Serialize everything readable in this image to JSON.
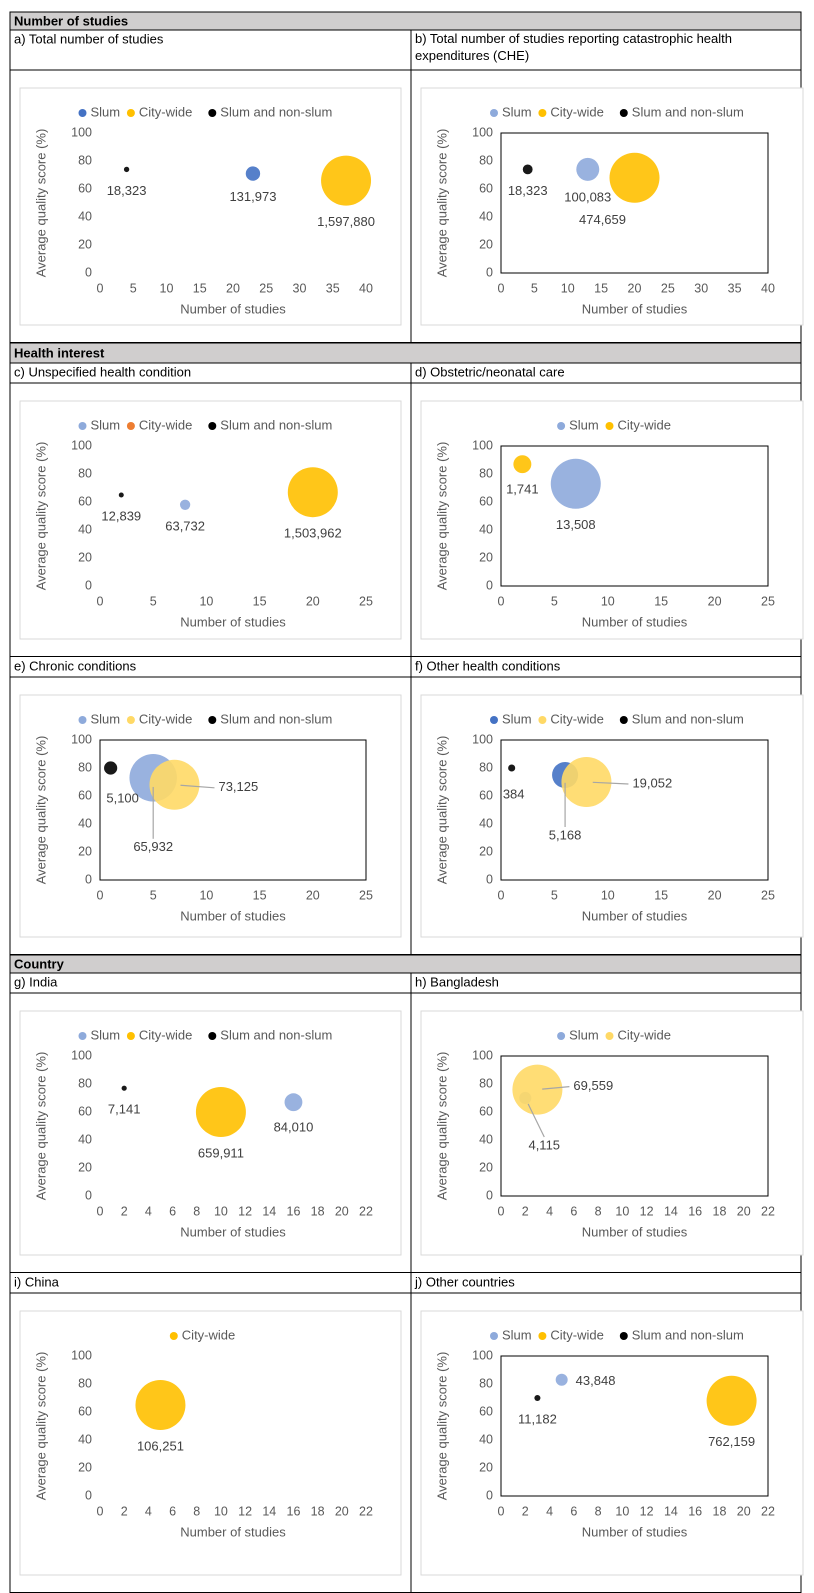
{
  "sections": [
    "Number of studies",
    "Health interest",
    "Country"
  ],
  "chart_data": [
    {
      "type": "bubble",
      "title": "a) Total number of studies",
      "xlabel": "Number of studies",
      "ylabel": "Average quality score (%)",
      "xlim": [
        0,
        40
      ],
      "xticks": [
        0,
        5,
        10,
        15,
        20,
        25,
        30,
        35,
        40
      ],
      "ylim": [
        0,
        100
      ],
      "yticks": [
        0,
        20,
        40,
        60,
        80,
        100
      ],
      "plot_border": false,
      "series": [
        {
          "name": "Slum",
          "color": "#4472c4",
          "x": [
            23
          ],
          "values": [
            71
          ],
          "sizes": [
            131973
          ],
          "value_labels": [
            "131,973"
          ]
        },
        {
          "name": "City-wide",
          "color": "#ffc000",
          "x": [
            37
          ],
          "values": [
            66
          ],
          "sizes": [
            1597880
          ],
          "value_labels": [
            "1,597,880"
          ]
        },
        {
          "name": "Slum and non-slum",
          "color": "#000000",
          "x": [
            4
          ],
          "values": [
            74
          ],
          "sizes": [
            18323
          ],
          "value_labels": [
            "18,323"
          ]
        }
      ]
    },
    {
      "type": "bubble",
      "title": "b) Total number of studies reporting catastrophic health expenditures (CHE)",
      "xlabel": "Number of studies",
      "ylabel": "Average quality score (%)",
      "xlim": [
        0,
        40
      ],
      "xticks": [
        0,
        5,
        10,
        15,
        20,
        25,
        30,
        35,
        40
      ],
      "ylim": [
        0,
        100
      ],
      "yticks": [
        0,
        20,
        40,
        60,
        80,
        100
      ],
      "plot_border": true,
      "series": [
        {
          "name": "Slum",
          "color": "#8eaadb",
          "x": [
            13
          ],
          "values": [
            74
          ],
          "sizes": [
            100083
          ],
          "value_labels": [
            "100,083"
          ]
        },
        {
          "name": "City-wide",
          "color": "#ffc000",
          "x": [
            20
          ],
          "values": [
            68
          ],
          "sizes": [
            474659
          ],
          "value_labels": [
            "474,659"
          ]
        },
        {
          "name": "Slum and non-slum",
          "color": "#000000",
          "x": [
            4
          ],
          "values": [
            74
          ],
          "sizes": [
            18323
          ],
          "value_labels": [
            "18,323"
          ]
        }
      ]
    },
    {
      "type": "bubble",
      "title": "c) Unspecified health condition",
      "xlabel": "Number of studies",
      "ylabel": "Average quality score (%)",
      "xlim": [
        0,
        25
      ],
      "xticks": [
        0,
        5,
        10,
        15,
        20,
        25
      ],
      "ylim": [
        0,
        100
      ],
      "yticks": [
        0,
        20,
        40,
        60,
        80,
        100
      ],
      "plot_border": false,
      "series": [
        {
          "name": "Slum",
          "color": "#8eaadb",
          "x": [
            8
          ],
          "values": [
            58
          ],
          "sizes": [
            63732
          ],
          "value_labels": [
            "63,732"
          ]
        },
        {
          "name": "City-wide",
          "color": "#ed7d31",
          "marker_color": "#ffc000",
          "x": [
            20
          ],
          "values": [
            67
          ],
          "sizes": [
            1503962
          ],
          "value_labels": [
            "1,503,962"
          ]
        },
        {
          "name": "Slum and non-slum",
          "color": "#000000",
          "x": [
            2
          ],
          "values": [
            65
          ],
          "sizes": [
            12839
          ],
          "value_labels": [
            "12,839"
          ]
        }
      ]
    },
    {
      "type": "bubble",
      "title": "d) Obstetric/neonatal care",
      "xlabel": "Number of studies",
      "ylabel": "Average quality score (%)",
      "xlim": [
        0,
        25
      ],
      "xticks": [
        0,
        5,
        10,
        15,
        20,
        25
      ],
      "ylim": [
        0,
        100
      ],
      "yticks": [
        0,
        20,
        40,
        60,
        80,
        100
      ],
      "plot_border": true,
      "series": [
        {
          "name": "Slum",
          "color": "#8eaadb",
          "x": [
            7
          ],
          "values": [
            73
          ],
          "sizes": [
            13508
          ],
          "value_labels": [
            "13,508"
          ]
        },
        {
          "name": "City-wide",
          "color": "#ffc000",
          "x": [
            2
          ],
          "values": [
            87
          ],
          "sizes": [
            1741
          ],
          "value_labels": [
            "1,741"
          ]
        }
      ]
    },
    {
      "type": "bubble",
      "title": "e) Chronic conditions",
      "xlabel": "Number of studies",
      "ylabel": "Average quality score (%)",
      "xlim": [
        0,
        25
      ],
      "xticks": [
        0,
        5,
        10,
        15,
        20,
        25
      ],
      "ylim": [
        0,
        100
      ],
      "yticks": [
        0,
        20,
        40,
        60,
        80,
        100
      ],
      "plot_border": true,
      "series": [
        {
          "name": "Slum",
          "color": "#8eaadb",
          "x": [
            5
          ],
          "values": [
            73
          ],
          "sizes": [
            65932
          ],
          "value_labels": [
            "65,932"
          ]
        },
        {
          "name": "City-wide",
          "color": "#ffd966",
          "x": [
            7
          ],
          "values": [
            68
          ],
          "sizes": [
            73125
          ],
          "value_labels": [
            "73,125"
          ]
        },
        {
          "name": "Slum and non-slum",
          "color": "#000000",
          "x": [
            1
          ],
          "values": [
            80
          ],
          "sizes": [
            5100
          ],
          "value_labels": [
            "5,100"
          ]
        }
      ]
    },
    {
      "type": "bubble",
      "title": "f) Other health conditions",
      "xlabel": "Number of studies",
      "ylabel": "Average quality score (%)",
      "xlim": [
        0,
        25
      ],
      "xticks": [
        0,
        5,
        10,
        15,
        20,
        25
      ],
      "ylim": [
        0,
        100
      ],
      "yticks": [
        0,
        20,
        40,
        60,
        80,
        100
      ],
      "plot_border": true,
      "series": [
        {
          "name": "Slum",
          "color": "#4472c4",
          "x": [
            6
          ],
          "values": [
            75
          ],
          "sizes": [
            5168
          ],
          "value_labels": [
            "5,168"
          ]
        },
        {
          "name": "City-wide",
          "color": "#ffd966",
          "x": [
            8
          ],
          "values": [
            70
          ],
          "sizes": [
            19052
          ],
          "value_labels": [
            "19,052"
          ]
        },
        {
          "name": "Slum and non-slum",
          "color": "#000000",
          "x": [
            1
          ],
          "values": [
            80
          ],
          "sizes": [
            384
          ],
          "value_labels": [
            "384"
          ]
        }
      ]
    },
    {
      "type": "bubble",
      "title": "g) India",
      "xlabel": "Number of studies",
      "ylabel": "Average quality score (%)",
      "xlim": [
        0,
        22
      ],
      "xticks": [
        0,
        2,
        4,
        6,
        8,
        10,
        12,
        14,
        16,
        18,
        20,
        22
      ],
      "ylim": [
        0,
        100
      ],
      "yticks": [
        0,
        20,
        40,
        60,
        80,
        100
      ],
      "plot_border": false,
      "series": [
        {
          "name": "Slum",
          "color": "#8eaadb",
          "x": [
            16
          ],
          "values": [
            67
          ],
          "sizes": [
            84010
          ],
          "value_labels": [
            "84,010"
          ]
        },
        {
          "name": "City-wide",
          "color": "#ffc000",
          "x": [
            10
          ],
          "values": [
            60
          ],
          "sizes": [
            659911
          ],
          "value_labels": [
            "659,911"
          ]
        },
        {
          "name": "Slum and non-slum",
          "color": "#000000",
          "x": [
            2
          ],
          "values": [
            77
          ],
          "sizes": [
            7141
          ],
          "value_labels": [
            "7,141"
          ]
        }
      ]
    },
    {
      "type": "bubble",
      "title": "h) Bangladesh",
      "xlabel": "Number of studies",
      "ylabel": "Average quality score (%)",
      "xlim": [
        0,
        22
      ],
      "xticks": [
        0,
        2,
        4,
        6,
        8,
        10,
        12,
        14,
        16,
        18,
        20,
        22
      ],
      "ylim": [
        0,
        100
      ],
      "yticks": [
        0,
        20,
        40,
        60,
        80,
        100
      ],
      "plot_border": true,
      "series": [
        {
          "name": "Slum",
          "color": "#8eaadb",
          "x": [
            2
          ],
          "values": [
            70
          ],
          "sizes": [
            4115
          ],
          "value_labels": [
            "4,115"
          ]
        },
        {
          "name": "City-wide",
          "color": "#ffd966",
          "x": [
            3
          ],
          "values": [
            76
          ],
          "sizes": [
            69559
          ],
          "value_labels": [
            "69,559"
          ]
        }
      ]
    },
    {
      "type": "bubble",
      "title": "i) China",
      "xlabel": "Number of studies",
      "ylabel": "Average quality score (%)",
      "xlim": [
        0,
        22
      ],
      "xticks": [
        0,
        2,
        4,
        6,
        8,
        10,
        12,
        14,
        16,
        18,
        20,
        22
      ],
      "ylim": [
        0,
        100
      ],
      "yticks": [
        0,
        20,
        40,
        60,
        80,
        100
      ],
      "plot_border": false,
      "series": [
        {
          "name": "City-wide",
          "color": "#ffc000",
          "x": [
            5
          ],
          "values": [
            65
          ],
          "sizes": [
            106251
          ],
          "value_labels": [
            "106,251"
          ]
        }
      ]
    },
    {
      "type": "bubble",
      "title": "j) Other countries",
      "xlabel": "Number of studies",
      "ylabel": "Average quality score (%)",
      "xlim": [
        0,
        22
      ],
      "xticks": [
        0,
        2,
        4,
        6,
        8,
        10,
        12,
        14,
        16,
        18,
        20,
        22
      ],
      "ylim": [
        0,
        100
      ],
      "yticks": [
        0,
        20,
        40,
        60,
        80,
        100
      ],
      "plot_border": true,
      "series": [
        {
          "name": "Slum",
          "color": "#8eaadb",
          "x": [
            5
          ],
          "values": [
            83
          ],
          "sizes": [
            43848
          ],
          "value_labels": [
            "43,848"
          ]
        },
        {
          "name": "City-wide",
          "color": "#ffc000",
          "x": [
            19
          ],
          "values": [
            68
          ],
          "sizes": [
            762159
          ],
          "value_labels": [
            "762,159"
          ]
        },
        {
          "name": "Slum and non-slum",
          "color": "#000000",
          "x": [
            3
          ],
          "values": [
            70
          ],
          "sizes": [
            11182
          ],
          "value_labels": [
            "11,182"
          ]
        }
      ]
    }
  ]
}
